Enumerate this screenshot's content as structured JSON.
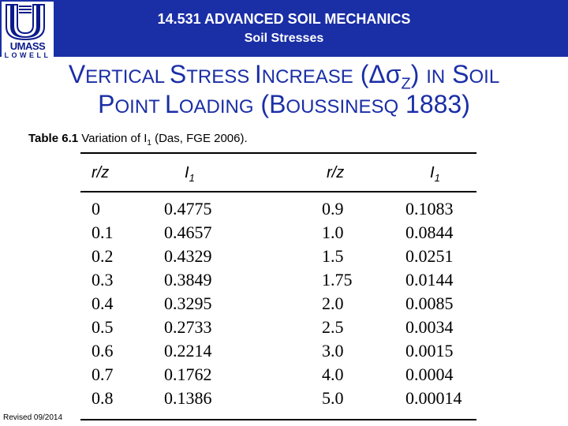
{
  "header": {
    "course_title": "14.531 ADVANCED SOIL MECHANICS",
    "course_subtitle": "Soil Stresses",
    "logo_top": "UMASS",
    "logo_bottom": "LOWELL",
    "bar_color": "#1a2ea6"
  },
  "title": {
    "line1_a": "V",
    "line1_b": "ERTICAL ",
    "line1_c": "S",
    "line1_d": "TRESS ",
    "line1_e": "I",
    "line1_f": "NCREASE",
    "line1_g": " (",
    "line1_delta": "Δσ",
    "line1_z": "Z",
    "line1_h": ") ",
    "line1_i": "IN",
    "line1_j": " S",
    "line1_k": "OIL",
    "line2_a": "P",
    "line2_b": "OINT ",
    "line2_c": "L",
    "line2_d": "OADING",
    "line2_e": " (B",
    "line2_f": "OUSSINESQ",
    "line2_g": " 1883)"
  },
  "caption": {
    "label": "Table 6.1",
    "text_before": " Variation of I",
    "sub": "1",
    "text_after": " (Das, FGE 2006)."
  },
  "table": {
    "col_headers": [
      "r/z",
      "I",
      "r/z",
      "I"
    ],
    "col_header_subs": [
      "",
      "1",
      "",
      "1"
    ],
    "left_rz": [
      "0",
      "0.1",
      "0.2",
      "0.3",
      "0.4",
      "0.5",
      "0.6",
      "0.7",
      "0.8"
    ],
    "left_i1": [
      "0.4775",
      "0.4657",
      "0.4329",
      "0.3849",
      "0.3295",
      "0.2733",
      "0.2214",
      "0.1762",
      "0.1386"
    ],
    "right_rz": [
      "0.9",
      "1.0",
      "1.5",
      "1.75",
      "2.0",
      "2.5",
      "3.0",
      "4.0",
      "5.0"
    ],
    "right_i1": [
      "0.1083",
      "0.0844",
      "0.0251",
      "0.0144",
      "0.0085",
      "0.0034",
      "0.0015",
      "0.0004",
      "0.00014"
    ]
  },
  "footer": {
    "revised": "Revised 09/2014"
  }
}
